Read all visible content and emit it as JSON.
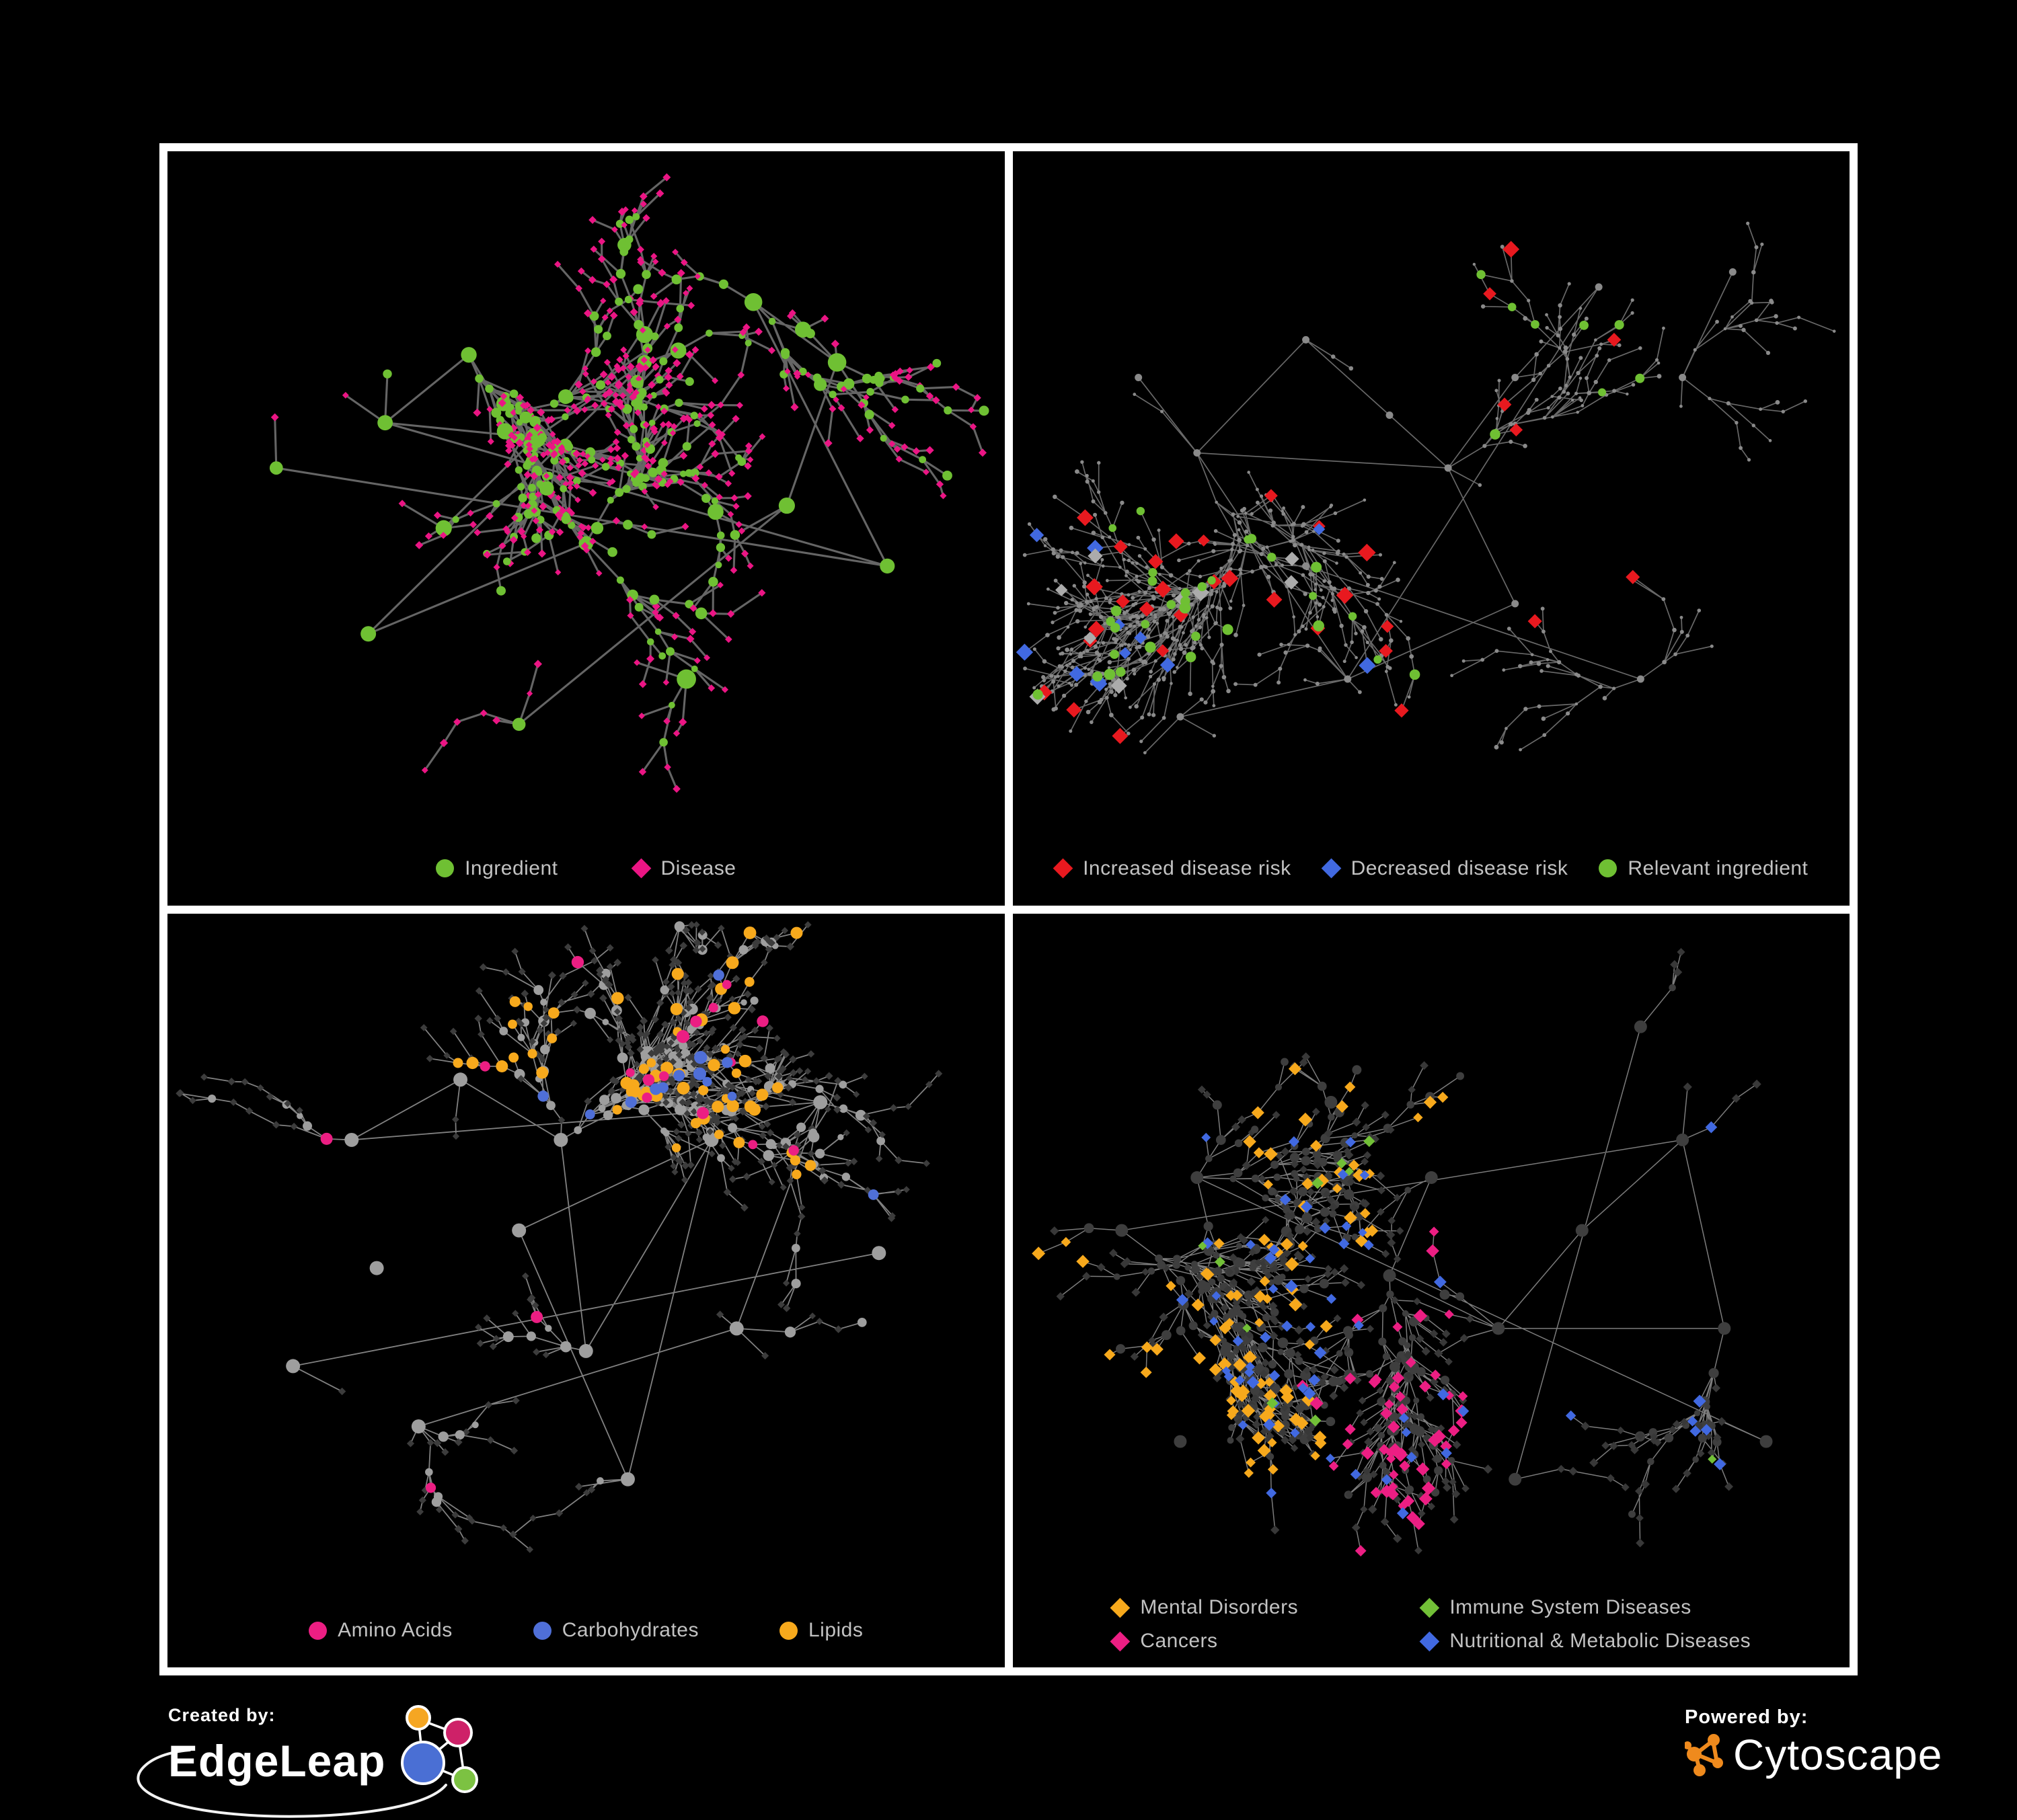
{
  "page": {
    "background": "#000000"
  },
  "footer": {
    "created_by": {
      "label": "Created by:",
      "brand": "EdgeLeap"
    },
    "powered_by": {
      "label": "Powered by:",
      "brand": "Cytoscape"
    },
    "edgeleap_colors": {
      "orange": "#F5A623",
      "pink": "#CE2168",
      "blue": "#4A6FD4",
      "green": "#7CC242"
    },
    "cytoscape_icon_color": "#EF8A1D"
  },
  "panels": [
    {
      "id": "ingredient-disease",
      "legend": [
        {
          "shape": "circle",
          "color": "#6FC033",
          "label": "Ingredient"
        },
        {
          "shape": "diamond",
          "color": "#EB1584",
          "label": "Disease"
        }
      ],
      "network": {
        "seed": 20231,
        "count": 640,
        "mode": "classes",
        "ing_extra": 0.08,
        "max_y": 0.87,
        "edge": {
          "color": "#6A6A6A",
          "width": 3.1,
          "opacity": 0.95
        },
        "clusters": [
          [
            0.36,
            0.27,
            3
          ],
          [
            0.26,
            0.36,
            2
          ],
          [
            0.44,
            0.38,
            4
          ],
          [
            0.33,
            0.5,
            3
          ],
          [
            0.5,
            0.52,
            3
          ],
          [
            0.24,
            0.64,
            2
          ],
          [
            0.57,
            0.28,
            2
          ],
          [
            0.7,
            0.2,
            2
          ],
          [
            0.8,
            0.28,
            2
          ],
          [
            0.74,
            0.47,
            2
          ],
          [
            0.42,
            0.76,
            2
          ],
          [
            0.62,
            0.7,
            2
          ],
          [
            0.13,
            0.42,
            1
          ],
          [
            0.86,
            0.55,
            1
          ]
        ],
        "ingredient": {
          "shape": "circle",
          "color": "#6FC033",
          "r_min": 4.8,
          "r_max": 7.5,
          "hub_r": 12
        },
        "disease": {
          "shape": "diamond",
          "color": "#EB1584",
          "r_min": 4.6,
          "r_max": 6.2
        }
      }
    },
    {
      "id": "disease-risk",
      "legend": [
        {
          "shape": "diamond",
          "color": "#E8191F",
          "label": "Increased disease risk"
        },
        {
          "shape": "diamond",
          "color": "#4169E1",
          "label": "Decreased disease risk"
        },
        {
          "shape": "circle",
          "color": "#6FC033",
          "label": "Relevant ingredient"
        }
      ],
      "network": {
        "seed": 4177,
        "count": 800,
        "mode": "base_highlight",
        "ing_extra": 0.08,
        "max_y": 0.87,
        "edge": {
          "color": "#6E6E6E",
          "width": 1.7,
          "opacity": 0.95
        },
        "clusters": [
          [
            0.15,
            0.3,
            2
          ],
          [
            0.22,
            0.4,
            3
          ],
          [
            0.35,
            0.25,
            2
          ],
          [
            0.45,
            0.35,
            3
          ],
          [
            0.52,
            0.42,
            3
          ],
          [
            0.6,
            0.3,
            2
          ],
          [
            0.7,
            0.18,
            2
          ],
          [
            0.8,
            0.3,
            2
          ],
          [
            0.86,
            0.16,
            1
          ],
          [
            0.6,
            0.6,
            2
          ],
          [
            0.4,
            0.7,
            2
          ],
          [
            0.2,
            0.75,
            1
          ],
          [
            0.75,
            0.7,
            2
          ],
          [
            0.35,
            0.55,
            2
          ]
        ],
        "base": {
          "ingredient": {
            "shape": "circle",
            "color": "#8A8A8A",
            "r_min": 2.2,
            "r_max": 3.4,
            "hub_r": 5.5
          },
          "disease": {
            "shape": "circle",
            "color": "#8A8A8A",
            "r_min": 2.2,
            "r_max": 3.4
          }
        },
        "highlights": [
          {
            "shape": "diamond",
            "color": "#E8191F",
            "r": 11,
            "count": 34,
            "class": "disease",
            "clusters": [
              1,
              3,
              4,
              5,
              6,
              9,
              12,
              13
            ]
          },
          {
            "shape": "diamond",
            "color": "#4169E1",
            "r": 10.5,
            "count": 12,
            "class": "disease",
            "clusters": [
              1,
              8,
              13
            ]
          },
          {
            "shape": "diamond",
            "color": "#ABABAB",
            "r": 10.5,
            "count": 9,
            "class": "disease",
            "clusters": [
              1,
              3,
              4,
              13
            ]
          },
          {
            "shape": "circle",
            "color": "#6FC033",
            "r": 7,
            "count": 40,
            "class": "ingredient",
            "clusters": [
              1,
              2,
              3,
              4,
              5,
              9,
              13
            ]
          }
        ]
      }
    },
    {
      "id": "nutrient-classes",
      "legend": [
        {
          "shape": "circle",
          "color": "#EC1E83",
          "label": "Amino Acids"
        },
        {
          "shape": "circle",
          "color": "#4F6FD8",
          "label": "Carbohydrates"
        },
        {
          "shape": "circle",
          "color": "#F7A91C",
          "label": "Lipids"
        }
      ],
      "network": {
        "seed": 9902,
        "count": 740,
        "mode": "base_highlight",
        "ing_extra": 0.08,
        "max_y": 0.87,
        "edge": {
          "color": "#8F8F8F",
          "width": 1.8,
          "opacity": 0.9
        },
        "clusters": [
          [
            0.22,
            0.3,
            2
          ],
          [
            0.35,
            0.22,
            2
          ],
          [
            0.47,
            0.3,
            3
          ],
          [
            0.42,
            0.42,
            3
          ],
          [
            0.25,
            0.47,
            3
          ],
          [
            0.5,
            0.58,
            2
          ],
          [
            0.65,
            0.3,
            2
          ],
          [
            0.78,
            0.25,
            2
          ],
          [
            0.68,
            0.55,
            2
          ],
          [
            0.3,
            0.68,
            2
          ],
          [
            0.55,
            0.75,
            2
          ],
          [
            0.15,
            0.6,
            1
          ],
          [
            0.85,
            0.45,
            1
          ]
        ],
        "base": {
          "ingredient": {
            "shape": "circle",
            "color": "#9E9E9E",
            "r_min": 4.5,
            "r_max": 8.5,
            "hub_r": 10.5
          },
          "disease": {
            "shape": "diamond",
            "color": "#3C3C3C",
            "r_min": 5,
            "r_max": 6
          }
        },
        "highlights": [
          {
            "shape": "circle",
            "color": "#F7A91C",
            "r": 8,
            "count": 58,
            "class": "ingredient",
            "clusters": [
              1,
              2,
              3
            ]
          },
          {
            "shape": "circle",
            "color": "#EC1E83",
            "r": 8,
            "count": 18,
            "class": "ingredient"
          },
          {
            "shape": "circle",
            "color": "#4F6FD8",
            "r": 8,
            "count": 13,
            "class": "ingredient",
            "clusters": [
              2
            ]
          }
        ]
      }
    },
    {
      "id": "disease-categories",
      "legend": [
        {
          "shape": "diamond",
          "color": "#F7A91C",
          "label": "Mental Disorders"
        },
        {
          "shape": "diamond",
          "color": "#72C037",
          "label": "Immune System Diseases"
        },
        {
          "shape": "diamond",
          "color": "#EC1E83",
          "label": "Cancers"
        },
        {
          "shape": "diamond",
          "color": "#4169E1",
          "label": "Nutritional & Metabolic Diseases"
        }
      ],
      "network": {
        "seed": 5513,
        "count": 860,
        "mode": "base_highlight",
        "ing_extra": 0.08,
        "max_y": 0.86,
        "edge": {
          "color": "#8A8A8A",
          "width": 1.5,
          "opacity": 0.9
        },
        "clusters": [
          [
            0.13,
            0.42,
            3
          ],
          [
            0.22,
            0.35,
            2
          ],
          [
            0.38,
            0.25,
            2
          ],
          [
            0.5,
            0.35,
            3
          ],
          [
            0.45,
            0.48,
            3
          ],
          [
            0.58,
            0.55,
            2
          ],
          [
            0.68,
            0.42,
            2
          ],
          [
            0.8,
            0.3,
            2
          ],
          [
            0.85,
            0.55,
            2
          ],
          [
            0.35,
            0.65,
            2
          ],
          [
            0.6,
            0.75,
            2
          ],
          [
            0.75,
            0.15,
            2
          ],
          [
            0.2,
            0.7,
            1
          ],
          [
            0.9,
            0.7,
            1
          ]
        ],
        "base": {
          "ingredient": {
            "shape": "circle",
            "color": "#3E3E3E",
            "r_min": 4.5,
            "r_max": 8,
            "hub_r": 9.5
          },
          "disease": {
            "shape": "diamond",
            "color": "#383838",
            "r_min": 5.6,
            "r_max": 6.8
          }
        },
        "highlights": [
          {
            "shape": "diamond",
            "color": "#F7A91C",
            "r": 8.5,
            "count": 92,
            "class": "disease",
            "clusters": [
              0,
              1
            ]
          },
          {
            "shape": "diamond",
            "color": "#EC1E83",
            "r": 8.5,
            "count": 54,
            "class": "disease",
            "clusters": [
              4,
              5
            ]
          },
          {
            "shape": "diamond",
            "color": "#4169E1",
            "r": 8,
            "count": 62,
            "class": "disease",
            "clusters": [
              7,
              8,
              11,
              13
            ]
          },
          {
            "shape": "diamond",
            "color": "#72C037",
            "r": 8,
            "count": 10,
            "class": "disease"
          }
        ]
      }
    }
  ]
}
